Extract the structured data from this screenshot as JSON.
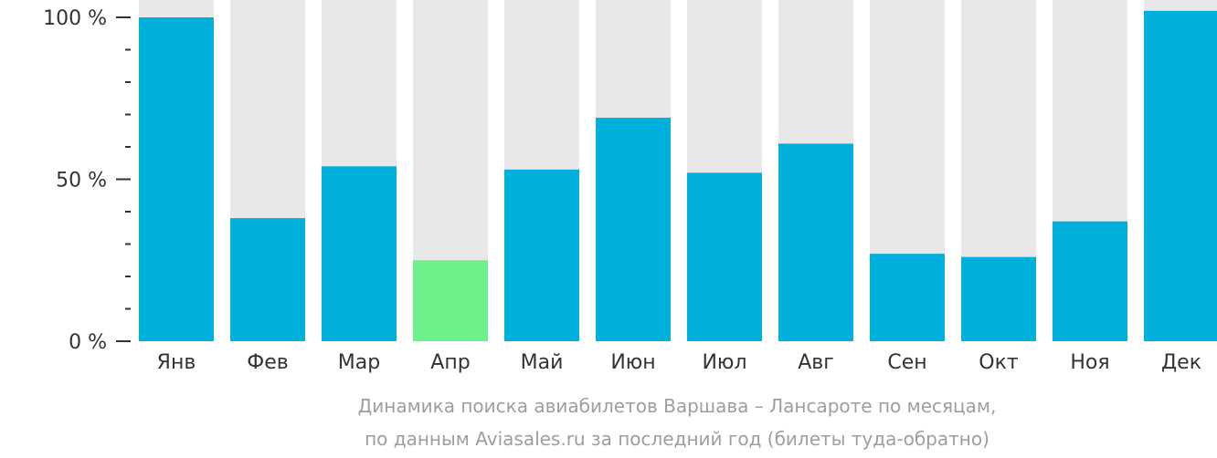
{
  "chart_data": {
    "type": "bar",
    "categories": [
      "Янв",
      "Фев",
      "Мар",
      "Апр",
      "Май",
      "Июн",
      "Июл",
      "Авг",
      "Сен",
      "Окт",
      "Ноя",
      "Дек"
    ],
    "values": [
      100,
      38,
      54,
      25,
      53,
      69,
      52,
      61,
      27,
      26,
      37,
      102
    ],
    "ylim": [
      0,
      100
    ],
    "y_ticks": [
      {
        "value": 100,
        "label": "100 %"
      },
      {
        "value": 50,
        "label": "50 %"
      },
      {
        "value": 0,
        "label": "0 %"
      }
    ],
    "minor_tick_step": 10,
    "highlight_index": 3,
    "colors": {
      "bar": "#00b0dc",
      "highlight": "#6ef08a",
      "background_bar": "#e8e8e8",
      "axis": "#333333"
    },
    "caption": [
      "Динамика поиска авиабилетов Варшава – Лансароте по месяцам,",
      "по данным Aviasales.ru за последний год (билеты туда-обратно)"
    ]
  }
}
